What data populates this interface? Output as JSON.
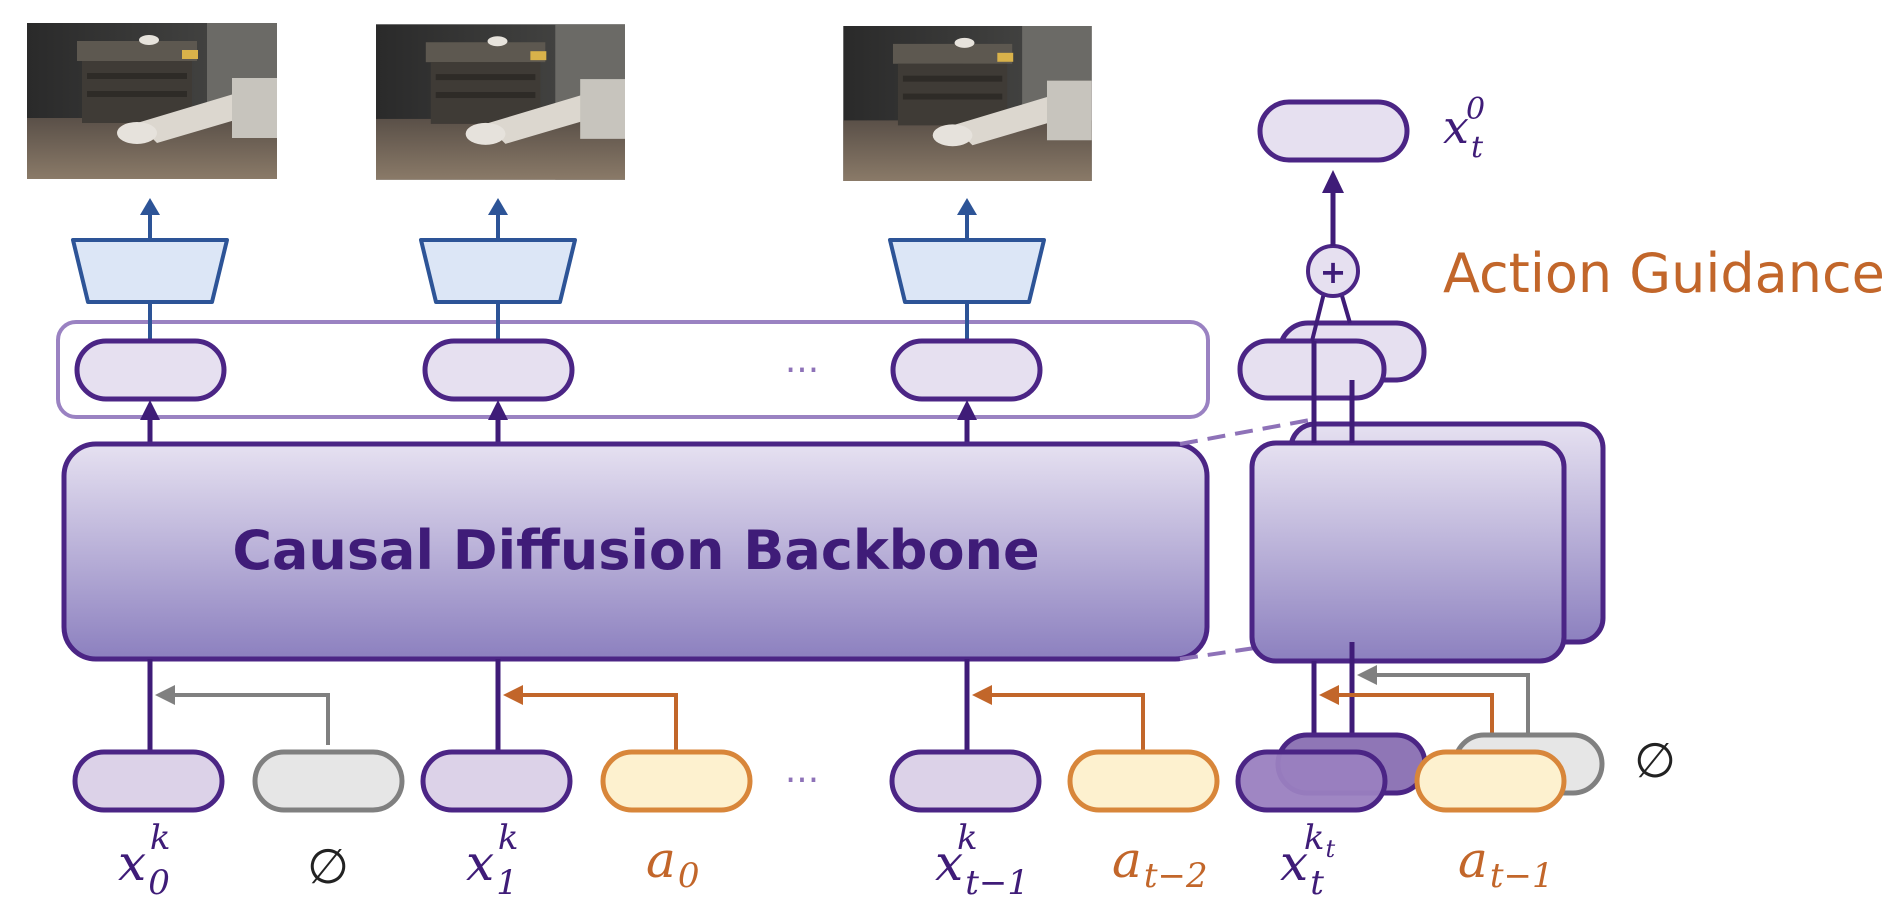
{
  "backbone": {
    "label": "Causal Diffusion Backbone"
  },
  "guidance": {
    "label": "Action Guidance",
    "plus_symbol": "+"
  },
  "output": {
    "symbol": "x",
    "sub": "t",
    "sup": "0"
  },
  "ellipsis": "···",
  "null_symbol": "∅",
  "inputs": [
    {
      "kind": "state",
      "symbol": "x",
      "sub": "0",
      "sup": "k"
    },
    {
      "kind": "null",
      "symbol": "∅"
    },
    {
      "kind": "state",
      "symbol": "x",
      "sub": "1",
      "sup": "k"
    },
    {
      "kind": "action",
      "symbol": "a",
      "sub": "0"
    },
    {
      "kind": "state",
      "symbol": "x",
      "sub": "t−1",
      "sup": "k"
    },
    {
      "kind": "action",
      "symbol": "a",
      "sub": "t−2"
    },
    {
      "kind": "state",
      "symbol": "x",
      "sub": "t",
      "sup": "k",
      "sup_sub": "t"
    },
    {
      "kind": "action",
      "symbol": "a",
      "sub": "t−1"
    }
  ],
  "colors": {
    "purple_dark": "#4b2585",
    "purple_line": "#3f1c78",
    "frame_line": "#8e72b8",
    "token_fill": "#e6e0f0",
    "state_fill": "#dcd2e8",
    "null_fill": "#e6e6e6",
    "null_stroke": "#808080",
    "action_fill": "#fdf1cf",
    "action_stroke": "#d8863a",
    "orange": "#c2662a",
    "decoder_fill": "#dce6f6",
    "decoder_stroke": "#2d5497"
  }
}
